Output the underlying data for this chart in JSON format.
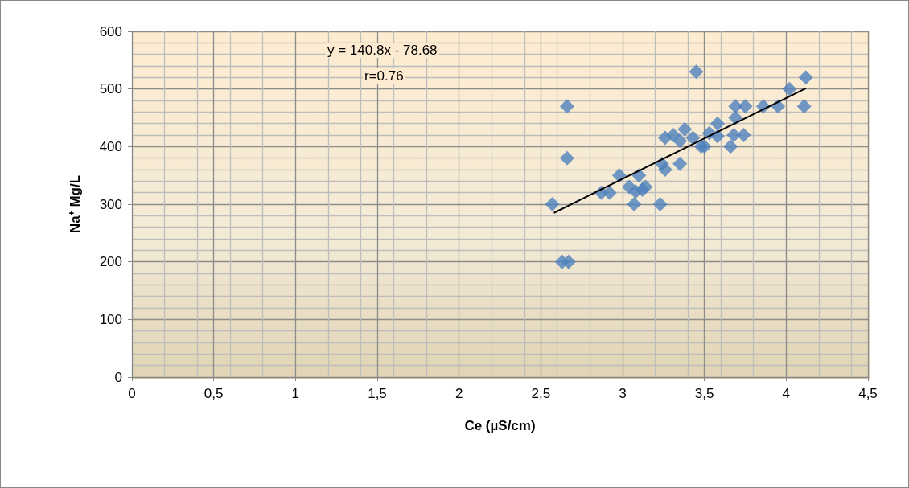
{
  "chart_data": {
    "type": "scatter",
    "xlabel": "Ce (µS/cm)",
    "ylabel": "Na⁺ Mg/L",
    "annotations": [
      "y = 140.8x - 78.68",
      "r=0.76"
    ],
    "xlim": [
      0,
      4.5
    ],
    "ylim": [
      0,
      600
    ],
    "xticks": [
      0,
      {
        "value": 0.5,
        "label": "0,5"
      },
      1,
      {
        "value": 1.5,
        "label": "1,5"
      },
      2,
      {
        "value": 2.5,
        "label": "2,5"
      },
      3,
      {
        "value": 3.5,
        "label": "3,5"
      },
      4,
      {
        "value": 4.5,
        "label": "4,5"
      }
    ],
    "yticks": [
      0,
      100,
      200,
      300,
      400,
      500,
      600
    ],
    "grid": true,
    "marker": "diamond",
    "series": [
      {
        "color": "#4f81bd",
        "x": [
          3.45,
          2.66,
          2.66,
          2.57,
          2.63,
          2.67,
          2.87,
          2.92,
          2.98,
          3.04,
          3.07,
          3.1,
          3.08,
          3.14,
          3.12,
          3.23,
          3.24,
          3.26,
          3.35,
          3.26,
          3.31,
          3.38,
          3.35,
          3.43,
          3.48,
          3.5,
          3.53,
          3.58,
          3.58,
          3.66,
          3.68,
          3.74,
          3.69,
          3.75,
          3.69,
          3.86,
          3.95,
          4.02,
          4.12,
          4.11
        ],
        "values": [
          530,
          470,
          380,
          300,
          200,
          200,
          320,
          320,
          350,
          330,
          300,
          350,
          322,
          330,
          325,
          300,
          370,
          360,
          370,
          415,
          420,
          430,
          410,
          415,
          400,
          400,
          423,
          440,
          418,
          400,
          420,
          420,
          470,
          470,
          450,
          470,
          470,
          500,
          520,
          470
        ]
      },
      {
        "type": "line",
        "color": "#000000",
        "marker": "none",
        "x": [
          2.58,
          4.12
        ],
        "values": [
          285,
          501
        ]
      }
    ]
  }
}
